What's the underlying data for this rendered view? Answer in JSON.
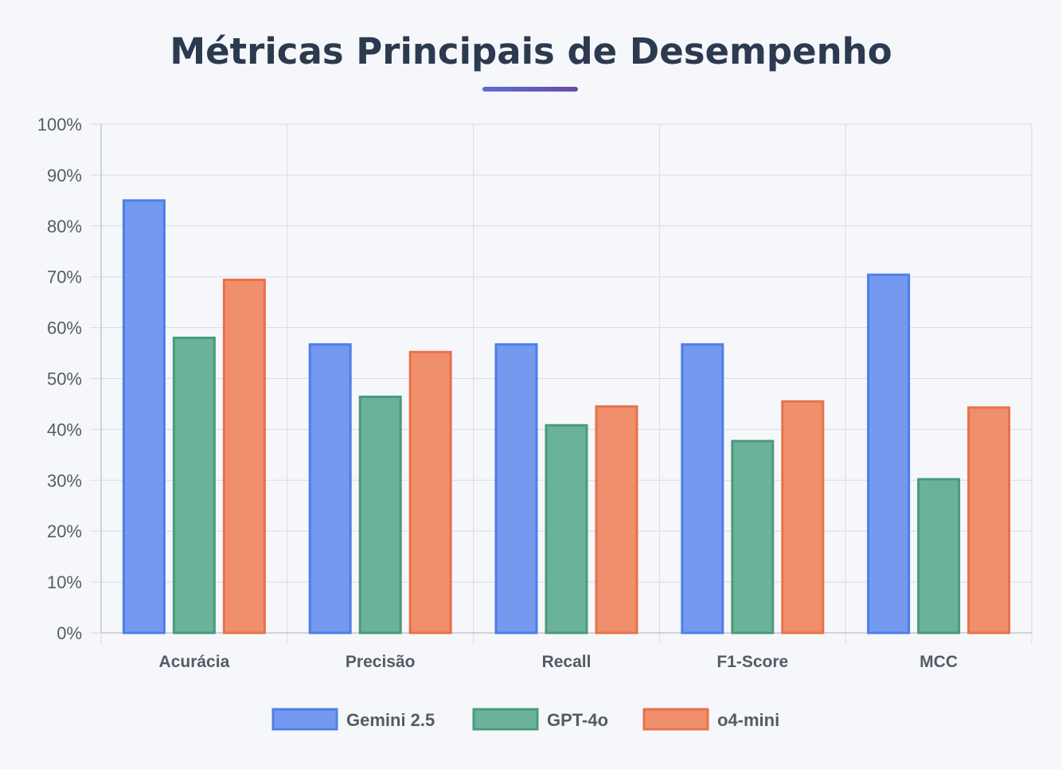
{
  "title": "Métricas Principais de Desempenho",
  "colors": {
    "gemini_fill": "#7499ef",
    "gemini_stroke": "#4f7ee8",
    "gpt_fill": "#6ab29a",
    "gpt_stroke": "#4a9a7c",
    "o4_fill": "#ef8f6b",
    "o4_stroke": "#e8714a",
    "grid": "#d9dbe3",
    "axis": "#c4c7d0"
  },
  "chart_data": {
    "type": "bar",
    "categories": [
      "Acurácia",
      "Precisão",
      "Recall",
      "F1-Score",
      "MCC"
    ],
    "series": [
      {
        "name": "Gemini 2.5",
        "values": [
          85.0,
          56.7,
          56.7,
          56.7,
          70.4
        ]
      },
      {
        "name": "GPT-4o",
        "values": [
          58.0,
          46.4,
          40.8,
          37.7,
          30.2
        ]
      },
      {
        "name": "o4-mini",
        "values": [
          69.4,
          55.2,
          44.5,
          45.5,
          44.3
        ]
      }
    ],
    "ylim": [
      0,
      100
    ],
    "yticks": [
      "0%",
      "10%",
      "20%",
      "30%",
      "40%",
      "50%",
      "60%",
      "70%",
      "80%",
      "90%",
      "100%"
    ],
    "grid": true,
    "legend_position": "bottom"
  }
}
